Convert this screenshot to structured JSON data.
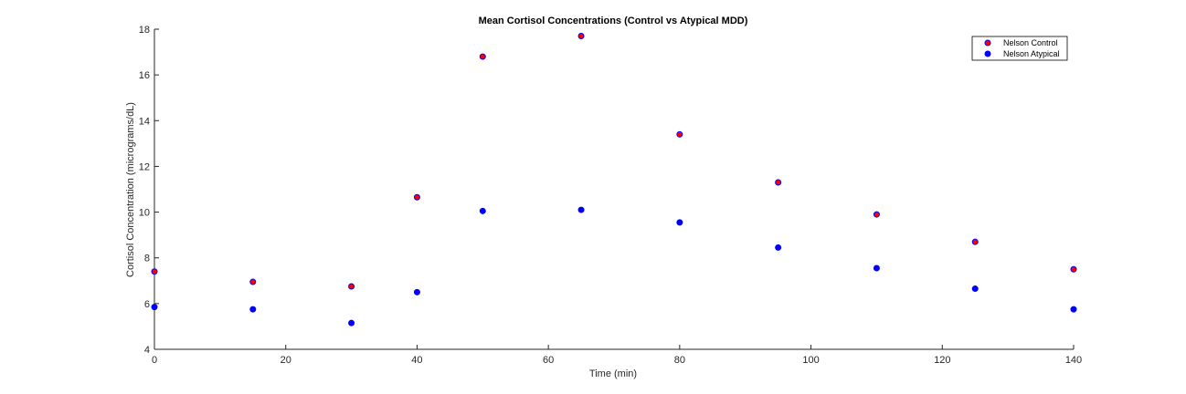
{
  "chart_data": {
    "type": "scatter",
    "title": "Mean Cortisol Concentrations (Control vs Atypical MDD)",
    "xlabel": "Time (min)",
    "ylabel": "Cortisol Concentration (micrograms/dL)",
    "xlim": [
      0,
      140
    ],
    "ylim": [
      4,
      18
    ],
    "xticks": [
      0,
      20,
      40,
      60,
      80,
      100,
      120,
      140
    ],
    "yticks": [
      4,
      6,
      8,
      10,
      12,
      14,
      16,
      18
    ],
    "grid": false,
    "legend_position": "top-right",
    "x": [
      0,
      15,
      30,
      40,
      50,
      65,
      80,
      95,
      110,
      125,
      140
    ],
    "series": [
      {
        "name": "Nelson Control",
        "color": "#ff0000",
        "edge_color": "#0000ff",
        "values": [
          7.4,
          6.95,
          6.75,
          10.65,
          16.8,
          17.7,
          13.4,
          11.3,
          9.9,
          8.7,
          7.5
        ]
      },
      {
        "name": "Nelson Atypical",
        "color": "#0000ff",
        "edge_color": "#0000ff",
        "values": [
          5.85,
          5.75,
          5.15,
          6.5,
          10.05,
          10.1,
          9.55,
          8.45,
          7.55,
          6.65,
          5.75
        ]
      }
    ]
  }
}
